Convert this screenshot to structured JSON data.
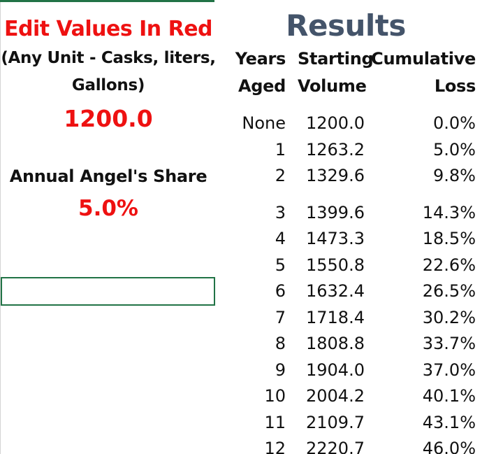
{
  "inputs": {
    "title": "Edit Values In Red",
    "unit_note_line1": "(Any Unit - Casks, liters,",
    "unit_note_line2": "Gallons)",
    "starting_volume": "1200.0",
    "angels_share_label": "Annual Angel's Share",
    "angels_share_value": "5.0%"
  },
  "results": {
    "title": "Results",
    "headers": {
      "years_line1": "Years",
      "years_line2": "Aged",
      "volume_line1": "Starting",
      "volume_line2": "Volume",
      "loss_line1": "Cumulative",
      "loss_line2": "Loss"
    },
    "rows": [
      {
        "years": "None",
        "volume": "1200.0",
        "loss": "0.0%"
      },
      {
        "years": "1",
        "volume": "1263.2",
        "loss": "5.0%"
      },
      {
        "years": "2",
        "volume": "1329.6",
        "loss": "9.8%"
      },
      {
        "years": "3",
        "volume": "1399.6",
        "loss": "14.3%"
      },
      {
        "years": "4",
        "volume": "1473.3",
        "loss": "18.5%"
      },
      {
        "years": "5",
        "volume": "1550.8",
        "loss": "22.6%"
      },
      {
        "years": "6",
        "volume": "1632.4",
        "loss": "26.5%"
      },
      {
        "years": "7",
        "volume": "1718.4",
        "loss": "30.2%"
      },
      {
        "years": "8",
        "volume": "1808.8",
        "loss": "33.7%"
      },
      {
        "years": "9",
        "volume": "1904.0",
        "loss": "37.0%"
      },
      {
        "years": "10",
        "volume": "2004.2",
        "loss": "40.1%"
      },
      {
        "years": "11",
        "volume": "2109.7",
        "loss": "43.1%"
      },
      {
        "years": "12",
        "volume": "2220.7",
        "loss": "46.0%"
      }
    ]
  },
  "colors": {
    "input_red": "#ee1111",
    "results_title": "#44546a",
    "selection_green": "#217346"
  }
}
